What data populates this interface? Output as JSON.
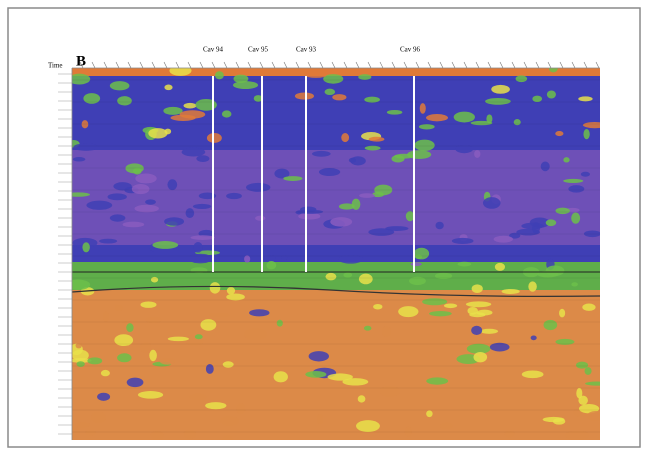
{
  "panel_label": "B",
  "axis_label": "Time",
  "markers": [
    "Cav 94",
    "Cav 95",
    "Cav 93",
    "Cav 96"
  ]
}
